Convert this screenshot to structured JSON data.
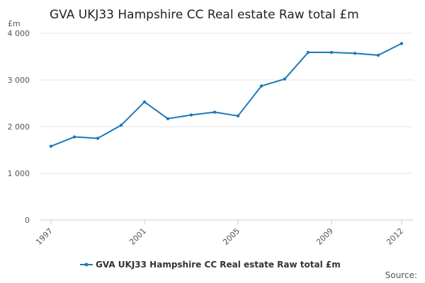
{
  "chart_data": {
    "type": "line",
    "title": "GVA UKJ33 Hampshire CC Real estate Raw total £m",
    "unit_label": "£m",
    "x": [
      1997,
      1998,
      1999,
      2000,
      2001,
      2002,
      2003,
      2004,
      2005,
      2006,
      2007,
      2008,
      2009,
      2010,
      2011,
      2012
    ],
    "x_tick_labels": [
      "1997",
      "2001",
      "2005",
      "2009",
      "2012"
    ],
    "y_tick_labels": [
      "0",
      "1 000",
      "2 000",
      "3 000",
      "4 000"
    ],
    "ylim": [
      0,
      4000
    ],
    "grid": true,
    "legend_position": "bottom",
    "series": [
      {
        "name": "GVA UKJ33 Hampshire CC Real estate Raw total £m",
        "color": "#1a7ab8",
        "values": [
          1580,
          1780,
          1750,
          2030,
          2530,
          2170,
          2250,
          2310,
          2230,
          2870,
          3020,
          3590,
          3590,
          3570,
          3530,
          3780
        ]
      }
    ],
    "source_label": "Source:"
  }
}
